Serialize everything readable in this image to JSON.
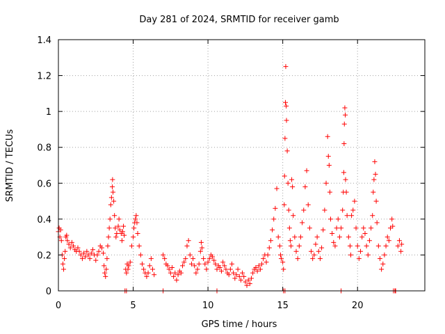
{
  "chart_data": {
    "type": "scatter",
    "title": "Day 281 of 2024, SRMTID for receiver gamb",
    "xlabel": "GPS time / hours",
    "ylabel": "SRMTID / TECUs",
    "xlim": [
      0,
      24.5
    ],
    "ylim": [
      0,
      1.4
    ],
    "xticks": [
      0,
      5,
      10,
      15,
      20
    ],
    "xtick_labels": [
      "0",
      "5",
      "10",
      "15",
      "20"
    ],
    "yticks": [
      0,
      0.2,
      0.4,
      0.6,
      0.8,
      1.0,
      1.2,
      1.4
    ],
    "ytick_labels": [
      "0",
      "0.2",
      "0.4",
      "0.6",
      "0.8",
      "1",
      "1.2",
      "1.4"
    ],
    "grid": true,
    "marker": "plus",
    "series": [
      {
        "name": "SRMTID",
        "color": "#ff0000",
        "points": [
          [
            0.0,
            0.33
          ],
          [
            0.05,
            0.35
          ],
          [
            0.1,
            0.3
          ],
          [
            0.15,
            0.34
          ],
          [
            0.2,
            0.28
          ],
          [
            0.25,
            0.2
          ],
          [
            0.3,
            0.15
          ],
          [
            0.35,
            0.12
          ],
          [
            0.4,
            0.18
          ],
          [
            0.45,
            0.22
          ],
          [
            0.5,
            0.3
          ],
          [
            0.55,
            0.31
          ],
          [
            0.6,
            0.28
          ],
          [
            0.7,
            0.26
          ],
          [
            0.8,
            0.24
          ],
          [
            0.9,
            0.27
          ],
          [
            1.0,
            0.25
          ],
          [
            1.1,
            0.23
          ],
          [
            1.2,
            0.22
          ],
          [
            1.3,
            0.24
          ],
          [
            1.4,
            0.22
          ],
          [
            1.5,
            0.2
          ],
          [
            1.6,
            0.18
          ],
          [
            1.7,
            0.21
          ],
          [
            1.8,
            0.19
          ],
          [
            1.9,
            0.22
          ],
          [
            2.0,
            0.2
          ],
          [
            2.1,
            0.18
          ],
          [
            2.2,
            0.21
          ],
          [
            2.3,
            0.23
          ],
          [
            2.4,
            0.2
          ],
          [
            2.5,
            0.17
          ],
          [
            2.6,
            0.2
          ],
          [
            2.7,
            0.22
          ],
          [
            2.8,
            0.25
          ],
          [
            2.9,
            0.24
          ],
          [
            3.0,
            0.21
          ],
          [
            3.05,
            0.14
          ],
          [
            3.1,
            0.1
          ],
          [
            3.15,
            0.08
          ],
          [
            3.2,
            0.12
          ],
          [
            3.25,
            0.18
          ],
          [
            3.3,
            0.25
          ],
          [
            3.35,
            0.3
          ],
          [
            3.4,
            0.35
          ],
          [
            3.45,
            0.4
          ],
          [
            3.5,
            0.48
          ],
          [
            3.55,
            0.52
          ],
          [
            3.6,
            0.58
          ],
          [
            3.62,
            0.62
          ],
          [
            3.65,
            0.55
          ],
          [
            3.7,
            0.5
          ],
          [
            3.75,
            0.42
          ],
          [
            3.8,
            0.35
          ],
          [
            3.85,
            0.3
          ],
          [
            3.9,
            0.32
          ],
          [
            4.0,
            0.36
          ],
          [
            4.05,
            0.4
          ],
          [
            4.1,
            0.34
          ],
          [
            4.2,
            0.32
          ],
          [
            4.25,
            0.28
          ],
          [
            4.3,
            0.33
          ],
          [
            4.35,
            0.36
          ],
          [
            4.4,
            0.31
          ],
          [
            4.5,
            0.12
          ],
          [
            4.55,
            0.1
          ],
          [
            4.6,
            0.15
          ],
          [
            4.65,
            0.12
          ],
          [
            4.7,
            0.14
          ],
          [
            4.8,
            0.16
          ],
          [
            4.9,
            0.25
          ],
          [
            5.0,
            0.3
          ],
          [
            5.05,
            0.35
          ],
          [
            5.1,
            0.38
          ],
          [
            5.15,
            0.4
          ],
          [
            5.2,
            0.42
          ],
          [
            5.25,
            0.38
          ],
          [
            5.3,
            0.32
          ],
          [
            5.4,
            0.25
          ],
          [
            5.5,
            0.2
          ],
          [
            5.6,
            0.15
          ],
          [
            5.7,
            0.12
          ],
          [
            5.8,
            0.1
          ],
          [
            5.9,
            0.08
          ],
          [
            6.0,
            0.1
          ],
          [
            6.1,
            0.14
          ],
          [
            6.2,
            0.18
          ],
          [
            6.3,
            0.12
          ],
          [
            6.4,
            0.09
          ],
          [
            7.0,
            0.2
          ],
          [
            7.1,
            0.18
          ],
          [
            7.2,
            0.15
          ],
          [
            7.3,
            0.14
          ],
          [
            7.4,
            0.12
          ],
          [
            7.5,
            0.1
          ],
          [
            7.6,
            0.13
          ],
          [
            7.7,
            0.08
          ],
          [
            7.8,
            0.1
          ],
          [
            7.9,
            0.06
          ],
          [
            8.0,
            0.09
          ],
          [
            8.1,
            0.11
          ],
          [
            8.2,
            0.1
          ],
          [
            8.3,
            0.14
          ],
          [
            8.4,
            0.16
          ],
          [
            8.5,
            0.18
          ],
          [
            8.6,
            0.25
          ],
          [
            8.7,
            0.28
          ],
          [
            8.8,
            0.2
          ],
          [
            8.9,
            0.15
          ],
          [
            9.0,
            0.18
          ],
          [
            9.1,
            0.14
          ],
          [
            9.2,
            0.1
          ],
          [
            9.3,
            0.12
          ],
          [
            9.4,
            0.15
          ],
          [
            9.5,
            0.22
          ],
          [
            9.55,
            0.27
          ],
          [
            9.6,
            0.24
          ],
          [
            9.7,
            0.18
          ],
          [
            9.8,
            0.15
          ],
          [
            9.9,
            0.12
          ],
          [
            10.0,
            0.16
          ],
          [
            10.1,
            0.18
          ],
          [
            10.2,
            0.2
          ],
          [
            10.3,
            0.19
          ],
          [
            10.4,
            0.17
          ],
          [
            10.5,
            0.15
          ],
          [
            10.6,
            0.12
          ],
          [
            10.7,
            0.14
          ],
          [
            10.8,
            0.13
          ],
          [
            10.9,
            0.11
          ],
          [
            11.0,
            0.16
          ],
          [
            11.1,
            0.14
          ],
          [
            11.2,
            0.12
          ],
          [
            11.3,
            0.1
          ],
          [
            11.4,
            0.09
          ],
          [
            11.5,
            0.12
          ],
          [
            11.6,
            0.15
          ],
          [
            11.7,
            0.1
          ],
          [
            11.8,
            0.07
          ],
          [
            11.9,
            0.09
          ],
          [
            12.0,
            0.12
          ],
          [
            12.1,
            0.08
          ],
          [
            12.2,
            0.06
          ],
          [
            12.3,
            0.1
          ],
          [
            12.4,
            0.08
          ],
          [
            12.5,
            0.05
          ],
          [
            12.6,
            0.03
          ],
          [
            12.7,
            0.06
          ],
          [
            12.8,
            0.04
          ],
          [
            12.9,
            0.07
          ],
          [
            13.0,
            0.1
          ],
          [
            13.1,
            0.12
          ],
          [
            13.2,
            0.13
          ],
          [
            13.3,
            0.11
          ],
          [
            13.4,
            0.14
          ],
          [
            13.5,
            0.12
          ],
          [
            13.6,
            0.15
          ],
          [
            13.7,
            0.18
          ],
          [
            13.8,
            0.2
          ],
          [
            13.9,
            0.16
          ],
          [
            14.0,
            0.2
          ],
          [
            14.1,
            0.24
          ],
          [
            14.2,
            0.28
          ],
          [
            14.3,
            0.34
          ],
          [
            14.4,
            0.4
          ],
          [
            14.5,
            0.46
          ],
          [
            14.6,
            0.57
          ],
          [
            14.7,
            0.3
          ],
          [
            14.8,
            0.25
          ],
          [
            14.85,
            0.2
          ],
          [
            14.9,
            0.18
          ],
          [
            15.0,
            0.16
          ],
          [
            15.05,
            0.12
          ],
          [
            15.1,
            0.48
          ],
          [
            15.12,
            0.64
          ],
          [
            15.15,
            0.85
          ],
          [
            15.18,
            1.05
          ],
          [
            15.2,
            1.25
          ],
          [
            15.23,
            1.03
          ],
          [
            15.25,
            0.95
          ],
          [
            15.3,
            0.78
          ],
          [
            15.35,
            0.6
          ],
          [
            15.4,
            0.45
          ],
          [
            15.45,
            0.35
          ],
          [
            15.5,
            0.28
          ],
          [
            15.55,
            0.25
          ],
          [
            15.6,
            0.62
          ],
          [
            15.65,
            0.58
          ],
          [
            15.7,
            0.42
          ],
          [
            15.8,
            0.3
          ],
          [
            15.9,
            0.22
          ],
          [
            16.0,
            0.18
          ],
          [
            16.1,
            0.25
          ],
          [
            16.2,
            0.3
          ],
          [
            16.3,
            0.38
          ],
          [
            16.4,
            0.45
          ],
          [
            16.5,
            0.58
          ],
          [
            16.6,
            0.67
          ],
          [
            16.7,
            0.48
          ],
          [
            16.8,
            0.35
          ],
          [
            16.9,
            0.22
          ],
          [
            17.0,
            0.18
          ],
          [
            17.1,
            0.2
          ],
          [
            17.2,
            0.26
          ],
          [
            17.3,
            0.3
          ],
          [
            17.4,
            0.22
          ],
          [
            17.5,
            0.18
          ],
          [
            17.6,
            0.24
          ],
          [
            17.7,
            0.34
          ],
          [
            17.8,
            0.45
          ],
          [
            17.9,
            0.6
          ],
          [
            18.0,
            0.86
          ],
          [
            18.05,
            0.75
          ],
          [
            18.1,
            0.7
          ],
          [
            18.15,
            0.55
          ],
          [
            18.2,
            0.4
          ],
          [
            18.3,
            0.32
          ],
          [
            18.4,
            0.27
          ],
          [
            18.5,
            0.25
          ],
          [
            18.6,
            0.35
          ],
          [
            18.7,
            0.4
          ],
          [
            18.8,
            0.3
          ],
          [
            18.9,
            0.35
          ],
          [
            19.0,
            0.45
          ],
          [
            19.05,
            0.55
          ],
          [
            19.08,
            0.66
          ],
          [
            19.1,
            0.82
          ],
          [
            19.12,
            0.93
          ],
          [
            19.15,
            1.02
          ],
          [
            19.18,
            0.98
          ],
          [
            19.2,
            0.62
          ],
          [
            19.25,
            0.55
          ],
          [
            19.3,
            0.42
          ],
          [
            19.4,
            0.3
          ],
          [
            19.5,
            0.25
          ],
          [
            19.55,
            0.2
          ],
          [
            19.6,
            0.42
          ],
          [
            19.7,
            0.45
          ],
          [
            19.8,
            0.5
          ],
          [
            19.9,
            0.35
          ],
          [
            20.0,
            0.25
          ],
          [
            20.1,
            0.18
          ],
          [
            20.2,
            0.22
          ],
          [
            20.3,
            0.3
          ],
          [
            20.4,
            0.35
          ],
          [
            20.5,
            0.32
          ],
          [
            20.6,
            0.25
          ],
          [
            20.7,
            0.2
          ],
          [
            20.8,
            0.28
          ],
          [
            20.9,
            0.35
          ],
          [
            21.0,
            0.42
          ],
          [
            21.05,
            0.55
          ],
          [
            21.1,
            0.62
          ],
          [
            21.15,
            0.72
          ],
          [
            21.2,
            0.65
          ],
          [
            21.25,
            0.5
          ],
          [
            21.3,
            0.38
          ],
          [
            21.4,
            0.25
          ],
          [
            21.5,
            0.18
          ],
          [
            21.6,
            0.12
          ],
          [
            21.7,
            0.15
          ],
          [
            21.8,
            0.2
          ],
          [
            21.9,
            0.25
          ],
          [
            22.0,
            0.3
          ],
          [
            22.1,
            0.28
          ],
          [
            22.2,
            0.35
          ],
          [
            22.3,
            0.4
          ],
          [
            22.35,
            0.36
          ],
          [
            22.7,
            0.25
          ],
          [
            22.8,
            0.28
          ],
          [
            22.9,
            0.22
          ],
          [
            22.95,
            0.26
          ],
          [
            4.45,
            0.0
          ],
          [
            4.55,
            0.0
          ],
          [
            7.0,
            0.0
          ],
          [
            10.6,
            0.0
          ],
          [
            15.05,
            0.0
          ],
          [
            15.15,
            0.0
          ],
          [
            18.9,
            0.0
          ],
          [
            22.4,
            0.0
          ],
          [
            22.5,
            0.0
          ],
          [
            22.55,
            0.0
          ]
        ]
      }
    ]
  }
}
